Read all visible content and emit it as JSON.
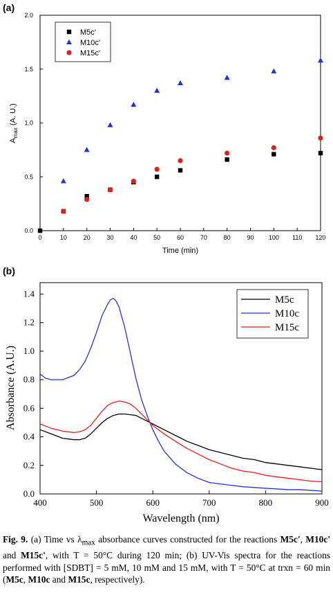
{
  "chart_data": [
    {
      "panel": "(a)",
      "type": "scatter",
      "xlabel": "Time (min)",
      "ylabel": "A",
      "ylabel_sub": "max",
      "ylabel_suffix": " (A. U.)",
      "xlim": [
        0,
        120
      ],
      "ylim": [
        0.0,
        2.0
      ],
      "xticks": [
        0,
        10,
        20,
        30,
        40,
        50,
        60,
        70,
        80,
        90,
        100,
        110,
        120
      ],
      "yticks": [
        "0.0",
        "0.5",
        "1.0",
        "1.5",
        "2.0"
      ],
      "grid": false,
      "legend_position": "top-left",
      "series": [
        {
          "name": "M5c'",
          "marker": "square",
          "color": "#000000",
          "x": [
            0,
            10,
            20,
            30,
            40,
            50,
            60,
            80,
            100,
            120
          ],
          "y": [
            0.0,
            0.18,
            0.32,
            0.38,
            0.45,
            0.5,
            0.56,
            0.66,
            0.71,
            0.72
          ]
        },
        {
          "name": "M10c'",
          "marker": "triangle",
          "color": "#1f33d6",
          "x": [
            10,
            20,
            30,
            40,
            50,
            60,
            80,
            100,
            120
          ],
          "y": [
            0.46,
            0.75,
            0.98,
            1.17,
            1.3,
            1.37,
            1.42,
            1.48,
            1.58
          ]
        },
        {
          "name": "M15c'",
          "marker": "circle",
          "color": "#e0201a",
          "x": [
            10,
            20,
            30,
            40,
            50,
            60,
            80,
            100,
            120
          ],
          "y": [
            0.18,
            0.29,
            0.38,
            0.46,
            0.57,
            0.65,
            0.72,
            0.77,
            0.86
          ]
        }
      ]
    },
    {
      "panel": "(b)",
      "type": "line",
      "xlabel": "Wavelength (nm)",
      "ylabel": "Absorbance (A.U.)",
      "xlim": [
        400,
        900
      ],
      "ylim": [
        0.0,
        1.48
      ],
      "xticks": [
        400,
        500,
        600,
        700,
        800,
        900
      ],
      "yticks": [
        "0.0",
        "0.2",
        "0.4",
        "0.6",
        "0.8",
        "1.0",
        "1.2",
        "1.4"
      ],
      "grid": false,
      "legend_position": "top-right",
      "series": [
        {
          "name": "M5c",
          "color": "#000000",
          "x": [
            400,
            420,
            440,
            460,
            470,
            480,
            490,
            500,
            510,
            520,
            530,
            540,
            550,
            560,
            570,
            580,
            590,
            600,
            620,
            640,
            660,
            680,
            700,
            720,
            740,
            760,
            780,
            800,
            820,
            840,
            860,
            880,
            900
          ],
          "y": [
            0.45,
            0.42,
            0.39,
            0.38,
            0.38,
            0.39,
            0.42,
            0.46,
            0.5,
            0.53,
            0.55,
            0.56,
            0.56,
            0.555,
            0.55,
            0.53,
            0.51,
            0.49,
            0.45,
            0.41,
            0.37,
            0.34,
            0.31,
            0.29,
            0.27,
            0.25,
            0.24,
            0.22,
            0.21,
            0.2,
            0.19,
            0.18,
            0.17
          ]
        },
        {
          "name": "M10c",
          "color": "#1f33d6",
          "x": [
            400,
            410,
            420,
            440,
            460,
            470,
            480,
            490,
            500,
            510,
            520,
            525,
            530,
            535,
            540,
            550,
            560,
            570,
            580,
            590,
            600,
            610,
            620,
            640,
            660,
            680,
            700,
            720,
            740,
            760,
            780,
            800,
            820,
            840,
            860,
            880,
            900
          ],
          "y": [
            0.84,
            0.81,
            0.8,
            0.8,
            0.83,
            0.87,
            0.93,
            1.02,
            1.13,
            1.25,
            1.33,
            1.36,
            1.37,
            1.35,
            1.31,
            1.17,
            0.99,
            0.81,
            0.66,
            0.55,
            0.45,
            0.37,
            0.3,
            0.21,
            0.15,
            0.11,
            0.08,
            0.07,
            0.06,
            0.05,
            0.045,
            0.04,
            0.035,
            0.03,
            0.03,
            0.025,
            0.02
          ]
        },
        {
          "name": "M15c",
          "color": "#e0201a",
          "x": [
            400,
            420,
            440,
            460,
            470,
            480,
            490,
            500,
            510,
            520,
            530,
            540,
            550,
            560,
            570,
            580,
            590,
            600,
            620,
            640,
            660,
            680,
            700,
            720,
            740,
            760,
            780,
            800,
            820,
            840,
            860,
            880,
            900
          ],
          "y": [
            0.49,
            0.46,
            0.44,
            0.43,
            0.435,
            0.45,
            0.48,
            0.53,
            0.58,
            0.62,
            0.64,
            0.65,
            0.645,
            0.63,
            0.6,
            0.56,
            0.52,
            0.48,
            0.42,
            0.37,
            0.32,
            0.28,
            0.24,
            0.21,
            0.18,
            0.16,
            0.15,
            0.13,
            0.12,
            0.11,
            0.1,
            0.09,
            0.085
          ]
        }
      ]
    }
  ],
  "caption": {
    "lead": "Fig. 9.",
    "p1": " (a) Time vs λ",
    "p1_sub": "max",
    "p2": " absorbance curves constructed for the reactions ",
    "b1": "M5c'",
    "p3": ", ",
    "b2": "M10c'",
    "p4": " and ",
    "b3": "M15c'",
    "p5": ", with T = 50°C during 120 min; (b) UV-Vis spectra for the reactions performed with [SDBT] = 5 mM, 10 mM and 15 mM, with T = 50°C at trxn = 60 min (",
    "b4": "M5c",
    "p6": ", ",
    "b5": "M10c",
    "p7": " and ",
    "b6": "M15c",
    "p8": ", respectively)."
  }
}
